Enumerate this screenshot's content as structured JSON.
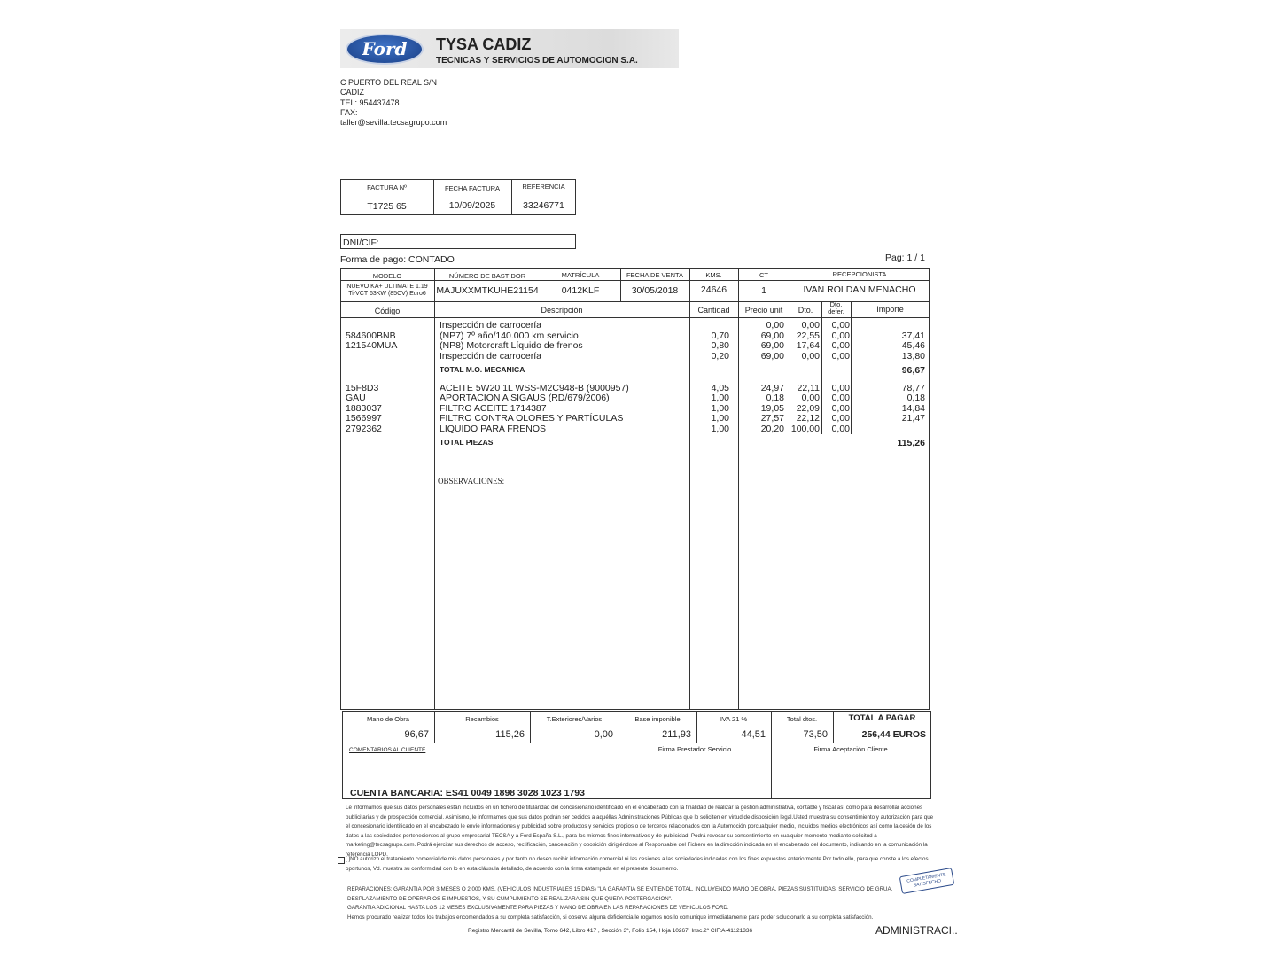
{
  "company": {
    "logo_text": "Ford",
    "name": "TYSA CADIZ",
    "subtitle": "TECNICAS Y SERVICIOS DE AUTOMOCION S.A.",
    "address": [
      "C PUERTO DEL REAL S/N",
      "CADIZ",
      "TEL:  954437478",
      "FAX:",
      "taller@sevilla.tecsagrupo.com"
    ]
  },
  "invoice": {
    "labels": [
      "FACTURA Nº",
      "FECHA FACTURA",
      "REFERENCIA"
    ],
    "values": [
      "T1725 65",
      "10/09/2025",
      "33246771"
    ]
  },
  "dni_label": "DNI/CIF:",
  "payment": "Forma de pago:  CONTADO",
  "page": "Pag: 1 / 1",
  "vehicle": {
    "headers": [
      "MODELO",
      "NÚMERO DE BASTIDOR",
      "MATRÍCULA",
      "FECHA DE VENTA",
      "KMS.",
      "CT",
      "RECEPCIONISTA"
    ],
    "model_line1": "NUEVO KA+ ULTIMATE 1.19",
    "model_line2": "Ti-VCT 63KW (85CV) Euro6",
    "values": [
      "MAJUXXMTKUHE21154",
      "0412KLF",
      "30/05/2018",
      "24646",
      "1",
      "IVAN ROLDAN MENACHO"
    ]
  },
  "items_headers": [
    "Código",
    "Descripción",
    "Cantidad",
    "Precio unit",
    "Dto.",
    "Dto. defer.",
    "Importe"
  ],
  "items": [
    {
      "code": "",
      "desc": "Inspección de carrocería",
      "qty": "",
      "price": "0,00",
      "dto": "0,00",
      "defer": "0,00",
      "amount": ""
    },
    {
      "code": "584600BNB",
      "desc": "(NP7) 7º año/140.000 km servicio",
      "qty": "0,70",
      "price": "69,00",
      "dto": "22,55",
      "defer": "0,00",
      "amount": "37,41"
    },
    {
      "code": "121540MUA",
      "desc": "(NP8) Motorcraft Líquido de frenos",
      "qty": "0,80",
      "price": "69,00",
      "dto": "17,64",
      "defer": "0,00",
      "amount": "45,46"
    },
    {
      "code": "",
      "desc": "Inspección de carrocería",
      "qty": "0,20",
      "price": "69,00",
      "dto": "0,00",
      "defer": "0,00",
      "amount": "13,80"
    },
    {
      "total": true,
      "desc": "TOTAL M.O. MECANICA",
      "amount": "96,67"
    },
    {
      "code": "15F8D3",
      "desc": "ACEITE 5W20 1L WSS-M2C948-B (9000957)",
      "qty": "4,05",
      "price": "24,97",
      "dto": "22,11",
      "defer": "0,00",
      "amount": "78,77"
    },
    {
      "code": "GAU",
      "desc": "APORTACION A SIGAUS (RD/679/2006)",
      "qty": "1,00",
      "price": "0,18",
      "dto": "0,00",
      "defer": "0,00",
      "amount": "0,18"
    },
    {
      "code": "1883037",
      "desc": "FILTRO ACEITE 1714387",
      "qty": "1,00",
      "price": "19,05",
      "dto": "22,09",
      "defer": "0,00",
      "amount": "14,84"
    },
    {
      "code": "1566997",
      "desc": "FILTRO CONTRA OLORES Y PARTÍCULAS",
      "qty": "1,00",
      "price": "27,57",
      "dto": "22,12",
      "defer": "0,00",
      "amount": "21,47"
    },
    {
      "code": "2792362",
      "desc": "LIQUIDO PARA FRENOS",
      "qty": "1,00",
      "price": "20,20",
      "dto": "100,00",
      "defer": "0,00",
      "amount": ""
    },
    {
      "total": true,
      "desc": "TOTAL PIEZAS",
      "amount": "115,26"
    }
  ],
  "observaciones": "OBSERVACIONES:",
  "totals": {
    "headers": [
      "Mano de Obra",
      "Recambios",
      "T.Exteriores/Varios",
      "Base imponible",
      "IVA  21 %",
      "Total dtos.",
      "TOTAL A PAGAR"
    ],
    "values": [
      "96,67",
      "115,26",
      "0,00",
      "211,93",
      "44,51",
      "73,50",
      "256,44 EUROS"
    ]
  },
  "comments_label": "COMENTARIOS AL CLIENTE",
  "firma_prestador": "Firma Prestador Servicio",
  "firma_cliente": "Firma Aceptación Cliente",
  "bank": "CUENTA BANCARIA: ES41 0049 1898 3028 1023 1793",
  "legal": "Le informamos que sus datos personales están incluidos en un fichero de titularidad del concesionario identificado en el encabezado con la finalidad de realizar la gestión administrativa, contable y fiscal así como para desarrollar acciones publicitarias y de prospección comercial. Asimismo, le informamos que sus datos podrán ser cedidos a aquéllas Administraciones Públicas que lo soliciten en virtud de disposición legal.Usted muestra su consentimiento y autorización para que el concesionario identificado en el encabezado le envíe informaciones y publicidad sobre productos y servicios propios o de terceros relacionados con la Automoción porcualquier medio, incluidos medios electrónicos así como la cesión de los datos a las sociedades pertenecientes al grupo empresarial TECSA y a Ford España S.L., para los mismos fines informativos y de publicidad. Podrá revocar su consentimiento en cualquier momento mediante solicitud a marketing@tecsagrupo.com. Podrá ejercitar sus derechos de acceso, rectificación, cancelación y oposición dirigiéndose al Responsable del Fichero en la dirección indicada en el encabezado del documento, indicando en la comunicación la referencia LOPD.",
  "consent": "[ ]NO autorizo el tratamiento comercial de mis datos personales y por tanto no deseo recibir información comercial ni las cesiones a las sociedades indicadas con los fines expuestos anteriormente.Por todo ello, para que conste a los efectos oportunos, Vd. muestra su conformidad con lo en esta cláusula detallado, de acuerdo con la firma estampada en el presente documento.",
  "warranty": [
    "REPARACIONES: GARANTIA POR 3 MESES O 2.000 KMS. (VEHICULOS INDUSTRIALES 15 DIAS) \"LA GARANTIA SE ENTIENDE TOTAL, INCLUYENDO MANO DE OBRA, PIEZAS SUSTITUIDAS, SERVICIO DE GRUA,",
    "DESPLAZAMIENTO DE OPERARIOS E IMPUESTOS, Y SU CUMPLIMIENTO SE REALIZARA SIN QUE QUEPA POSTERGACION\".",
    "GARANTIA ADICIONAL HASTA LOS 12 MESES EXCLUSIVAMENTE PARA PIEZAS Y MANO DE OBRA EN LAS REPARACIONES DE VEHICULOS FORD.",
    "Hemos procurado realizar todos los trabajos encomendados a su completa satisfacción, si observa alguna deficiencia le rogamos nos lo comunique inmediatamente para poder solucionarlo a su completa satisfacción."
  ],
  "stamp": "COMPLETAMENTE SATISFECHO",
  "registry": "Registro Mercantil de Sevilla, Tomo 642, Libro 417 , Sección 3ª, Folio 154, Hoja 10267, Insc.2ª CIF:A-41121336",
  "footer_right": "ADMINISTRACI..",
  "colors": {
    "ford_blue": "#1a3f86"
  }
}
